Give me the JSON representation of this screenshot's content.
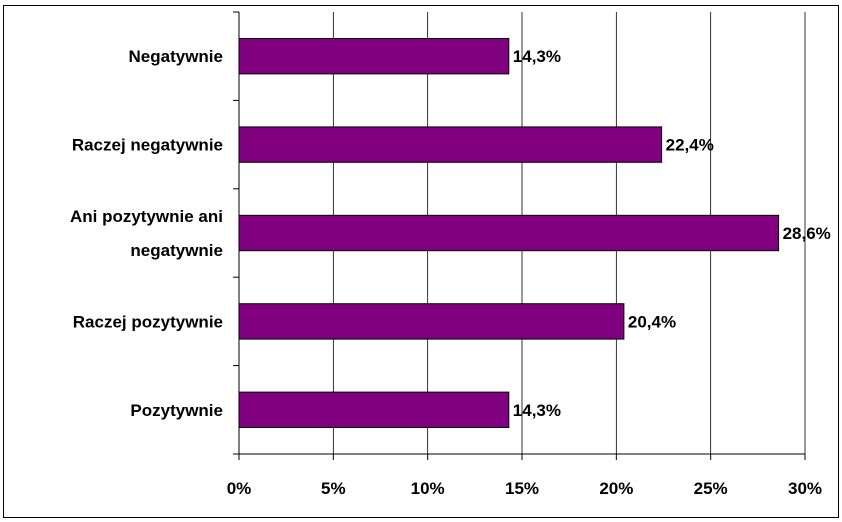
{
  "chart_data": {
    "type": "bar",
    "orientation": "horizontal",
    "title": "",
    "xlabel": "",
    "ylabel": "",
    "categories": [
      "Negatywnie",
      "Raczej negatywnie",
      "Ani pozytywnie ani negatywnie",
      "Raczej pozytywnie",
      "Pozytywnie"
    ],
    "category_lines": [
      [
        "Negatywnie"
      ],
      [
        "Raczej negatywnie"
      ],
      [
        "Ani pozytywnie ani",
        "negatywnie"
      ],
      [
        "Raczej pozytywnie"
      ],
      [
        "Pozytywnie"
      ]
    ],
    "values": [
      14.3,
      22.4,
      28.6,
      20.4,
      14.3
    ],
    "data_labels": [
      "14,3%",
      "22,4%",
      "28,6%",
      "20,4%",
      "14,3%"
    ],
    "xlim": [
      0,
      30
    ],
    "x_ticks": [
      0,
      5,
      10,
      15,
      20,
      25,
      30
    ],
    "x_tick_labels": [
      "0%",
      "5%",
      "10%",
      "15%",
      "20%",
      "25%",
      "30%"
    ],
    "grid": "vertical",
    "legend": "none",
    "colors": {
      "bar_fill": "#800080",
      "bar_stroke": "#000000",
      "gridline": "#000000",
      "text": "#000000"
    }
  }
}
